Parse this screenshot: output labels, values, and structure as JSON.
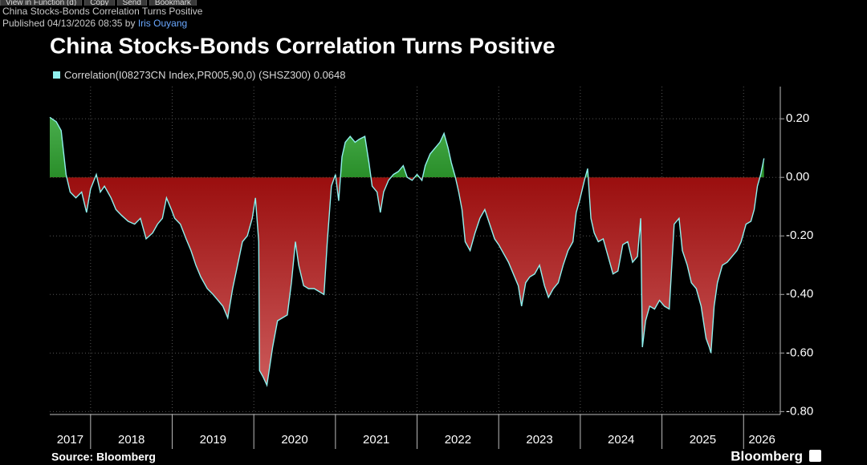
{
  "toolbar": [
    "View in Function (d)",
    "Copy",
    "Send",
    "Bookmark"
  ],
  "header": {
    "title": "China Stocks-Bonds Correlation Turns Positive",
    "published": "Published 04/13/2026 08:35 by",
    "author": "Iris Ouyang"
  },
  "chart_data": {
    "type": "area-line",
    "title": "China Stocks-Bonds Correlation Turns Positive",
    "source": "Source: Bloomberg",
    "brand": "Bloomberg",
    "x": [
      2017.5,
      2017.58,
      2017.64,
      2017.7,
      2017.75,
      2017.82,
      2017.89,
      2017.95,
      2018.0,
      2018.07,
      2018.12,
      2018.17,
      2018.25,
      2018.31,
      2018.38,
      2018.46,
      2018.54,
      2018.61,
      2018.68,
      2018.76,
      2018.82,
      2018.88,
      2018.93,
      2018.99,
      2019.03,
      2019.1,
      2019.17,
      2019.23,
      2019.29,
      2019.35,
      2019.43,
      2019.5,
      2019.56,
      2019.62,
      2019.68,
      2019.74,
      2019.8,
      2019.86,
      2019.92,
      2019.98,
      2020.02,
      2020.06,
      2020.07,
      2020.11,
      2020.16,
      2020.23,
      2020.29,
      2020.35,
      2020.41,
      2020.46,
      2020.51,
      2020.55,
      2020.61,
      2020.67,
      2020.74,
      2020.8,
      2020.86,
      2020.9,
      2020.95,
      2021.0,
      2021.04,
      2021.08,
      2021.12,
      2021.18,
      2021.24,
      2021.29,
      2021.36,
      2021.41,
      2021.45,
      2021.51,
      2021.55,
      2021.59,
      2021.65,
      2021.71,
      2021.77,
      2021.83,
      2021.88,
      2021.94,
      2022.0,
      2022.06,
      2022.1,
      2022.16,
      2022.22,
      2022.28,
      2022.33,
      2022.38,
      2022.42,
      2022.47,
      2022.51,
      2022.55,
      2022.59,
      2022.65,
      2022.71,
      2022.77,
      2022.83,
      2022.89,
      2022.95,
      2023.0,
      2023.06,
      2023.12,
      2023.18,
      2023.24,
      2023.28,
      2023.33,
      2023.38,
      2023.44,
      2023.5,
      2023.56,
      2023.61,
      2023.67,
      2023.73,
      2023.79,
      2023.85,
      2023.91,
      2023.95,
      2023.99,
      2024.05,
      2024.09,
      2024.13,
      2024.17,
      2024.22,
      2024.28,
      2024.34,
      2024.4,
      2024.46,
      2024.52,
      2024.58,
      2024.64,
      2024.7,
      2024.74,
      2024.76,
      2024.8,
      2024.85,
      2024.91,
      2024.97,
      2025.03,
      2025.09,
      2025.15,
      2025.21,
      2025.25,
      2025.31,
      2025.36,
      2025.42,
      2025.48,
      2025.54,
      2025.58,
      2025.6,
      2025.64,
      2025.68,
      2025.74,
      2025.8,
      2025.86,
      2025.92,
      2025.97,
      2026.03,
      2026.09,
      2026.13,
      2026.17,
      2026.21,
      2026.25
    ],
    "series": [
      {
        "name": "Correlation(I08273CN Index,PR005,90,0) (SHSZ300)",
        "last_value": 0.0648,
        "color": "#8ff0ee",
        "values": [
          0.205,
          0.19,
          0.16,
          0.01,
          -0.05,
          -0.07,
          -0.05,
          -0.12,
          -0.04,
          0.01,
          -0.05,
          -0.03,
          -0.07,
          -0.11,
          -0.13,
          -0.15,
          -0.16,
          -0.14,
          -0.21,
          -0.19,
          -0.16,
          -0.14,
          -0.07,
          -0.11,
          -0.14,
          -0.16,
          -0.21,
          -0.25,
          -0.3,
          -0.34,
          -0.38,
          -0.4,
          -0.42,
          -0.44,
          -0.48,
          -0.38,
          -0.3,
          -0.22,
          -0.2,
          -0.14,
          -0.07,
          -0.22,
          -0.66,
          -0.68,
          -0.71,
          -0.58,
          -0.49,
          -0.48,
          -0.47,
          -0.36,
          -0.22,
          -0.3,
          -0.37,
          -0.38,
          -0.38,
          -0.39,
          -0.4,
          -0.22,
          -0.03,
          0.01,
          -0.08,
          0.07,
          0.12,
          0.14,
          0.12,
          0.13,
          0.14,
          0.05,
          -0.03,
          -0.05,
          -0.12,
          -0.05,
          -0.01,
          0.01,
          0.02,
          0.04,
          0.0,
          -0.01,
          0.01,
          -0.01,
          0.04,
          0.08,
          0.1,
          0.12,
          0.15,
          0.1,
          0.05,
          0.0,
          -0.05,
          -0.11,
          -0.22,
          -0.25,
          -0.19,
          -0.14,
          -0.11,
          -0.16,
          -0.21,
          -0.23,
          -0.26,
          -0.29,
          -0.33,
          -0.37,
          -0.44,
          -0.36,
          -0.34,
          -0.33,
          -0.3,
          -0.37,
          -0.41,
          -0.38,
          -0.36,
          -0.3,
          -0.25,
          -0.22,
          -0.12,
          -0.08,
          -0.01,
          0.03,
          -0.14,
          -0.19,
          -0.22,
          -0.21,
          -0.27,
          -0.33,
          -0.32,
          -0.23,
          -0.22,
          -0.29,
          -0.27,
          -0.14,
          -0.58,
          -0.49,
          -0.44,
          -0.45,
          -0.42,
          -0.44,
          -0.45,
          -0.16,
          -0.14,
          -0.25,
          -0.3,
          -0.36,
          -0.38,
          -0.44,
          -0.55,
          -0.58,
          -0.6,
          -0.44,
          -0.36,
          -0.3,
          -0.29,
          -0.27,
          -0.25,
          -0.22,
          -0.16,
          -0.15,
          -0.11,
          -0.03,
          0.01,
          0.0648
        ]
      }
    ],
    "positive_color": "#2a8f2a",
    "negative_color": "#9a0e0e",
    "xlim": [
      2017.5,
      2026.45
    ],
    "xticks": [
      2017,
      2018,
      2019,
      2020,
      2021,
      2022,
      2023,
      2024,
      2025,
      2026
    ],
    "ylim": [
      -0.81,
      0.31
    ],
    "yticks": [
      {
        "value": 0.2,
        "label": "0.20"
      },
      {
        "value": 0,
        "label": "0.00"
      },
      {
        "value": -0.2,
        "label": "-0.20"
      },
      {
        "value": -0.4,
        "label": "-0.40"
      },
      {
        "value": -0.6,
        "label": "-0.60"
      },
      {
        "value": -0.8,
        "label": "-0.80"
      }
    ],
    "grid": true
  }
}
